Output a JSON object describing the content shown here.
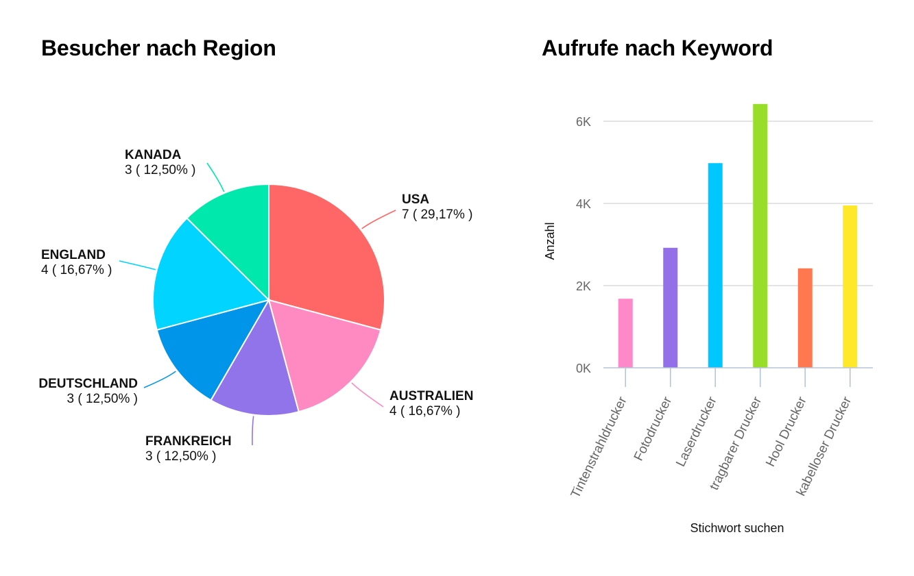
{
  "chart_data": [
    {
      "type": "pie",
      "title": "Besucher nach Region",
      "slices": [
        {
          "label": "USA",
          "value": 7,
          "value_text": "7 ( 29,17% )",
          "color": "#FF6666"
        },
        {
          "label": "AUSTRALIEN",
          "value": 4,
          "value_text": "4 ( 16,67% )",
          "color": "#FF8AC2"
        },
        {
          "label": "FRANKREICH",
          "value": 3,
          "value_text": "3 ( 12,50% )",
          "color": "#9274EA"
        },
        {
          "label": "DEUTSCHLAND",
          "value": 3,
          "value_text": "3 ( 12,50% )",
          "color": "#0095E8"
        },
        {
          "label": "ENGLAND",
          "value": 4,
          "value_text": "4 ( 16,67% )",
          "color": "#00D4FF"
        },
        {
          "label": "KANADA",
          "value": 3,
          "value_text": "3 ( 12,50% )",
          "color": "#00E8AB"
        }
      ]
    },
    {
      "type": "bar",
      "title": "Aufrufe nach Keyword",
      "xlabel": "Stichwort suchen",
      "ylabel": "Anzahl",
      "ylim": [
        0,
        6000
      ],
      "yticks": [
        0,
        2000,
        4000,
        6000
      ],
      "yticklabels": [
        "0K",
        "2K",
        "4K",
        "6K"
      ],
      "grid": true,
      "categories": [
        "Tintenstrahldrucker",
        "Fotodrucker",
        "Laserdrucker",
        "tragbarer Drucker",
        "Hool Drucker",
        "kabelloser Drucker"
      ],
      "values": [
        1680,
        2920,
        4980,
        6420,
        2420,
        3950
      ],
      "colors": [
        "#FF88C8",
        "#9370E8",
        "#00C8FF",
        "#99DD2B",
        "#FF7850",
        "#FFE82A"
      ]
    }
  ]
}
